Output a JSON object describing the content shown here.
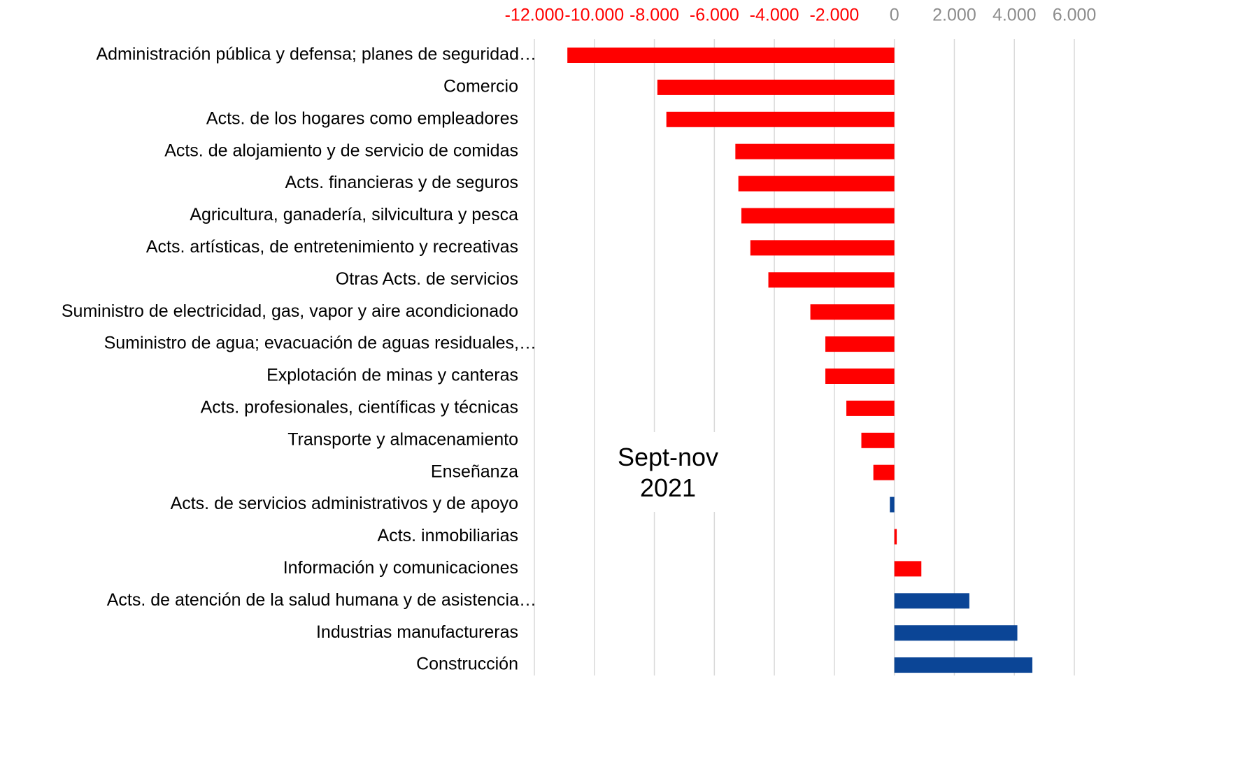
{
  "chart_data": {
    "type": "barh",
    "annotation": "Sept-nov 2021",
    "categories": [
      "Administración pública y defensa; planes de seguridad…",
      "Comercio",
      "Acts. de los hogares como empleadores",
      "Acts. de alojamiento y de servicio de comidas",
      "Acts. financieras y de seguros",
      "Agricultura, ganadería, silvicultura y pesca",
      "Acts. artísticas, de entretenimiento y recreativas",
      "Otras Acts. de servicios",
      "Suministro de electricidad, gas, vapor y aire acondicionado",
      "Suministro de agua; evacuación de aguas residuales,…",
      "Explotación de minas y canteras",
      "Acts. profesionales, científicas y técnicas",
      "Transporte y almacenamiento",
      "Enseñanza",
      "Acts. de servicios administrativos y de apoyo",
      "Acts. inmobiliarias",
      "Información y comunicaciones",
      "Acts. de atención de la salud humana y de asistencia…",
      "Industrias manufactureras",
      "Construcción"
    ],
    "values": [
      -10900,
      -7900,
      -7600,
      -5300,
      -5200,
      -5100,
      -4800,
      -4200,
      -2800,
      -2300,
      -2300,
      -1600,
      -1100,
      -700,
      -150,
      80,
      900,
      2500,
      4100,
      4600
    ],
    "colors": [
      "#ff0000",
      "#ff0000",
      "#ff0000",
      "#ff0000",
      "#ff0000",
      "#ff0000",
      "#ff0000",
      "#ff0000",
      "#ff0000",
      "#ff0000",
      "#ff0000",
      "#ff0000",
      "#ff0000",
      "#ff0000",
      "#0b4596",
      "#ff0000",
      "#ff0000",
      "#0b4596",
      "#0b4596",
      "#0b4596"
    ],
    "xlim": [
      -12000,
      6000
    ],
    "xticks": [
      {
        "value": -12000,
        "label": "-12.000"
      },
      {
        "value": -10000,
        "label": "-10.000"
      },
      {
        "value": -8000,
        "label": "-8.000"
      },
      {
        "value": -6000,
        "label": "-6.000"
      },
      {
        "value": -4000,
        "label": "-4.000"
      },
      {
        "value": -2000,
        "label": "-2.000"
      },
      0,
      {
        "value": 2000,
        "label": "2.000"
      },
      {
        "value": 4000,
        "label": "4.000"
      },
      {
        "value": 6000,
        "label": "6.000"
      }
    ],
    "negative_tick_color": "#ff0000",
    "tick_color": "#8c8c8c",
    "grid": true
  }
}
